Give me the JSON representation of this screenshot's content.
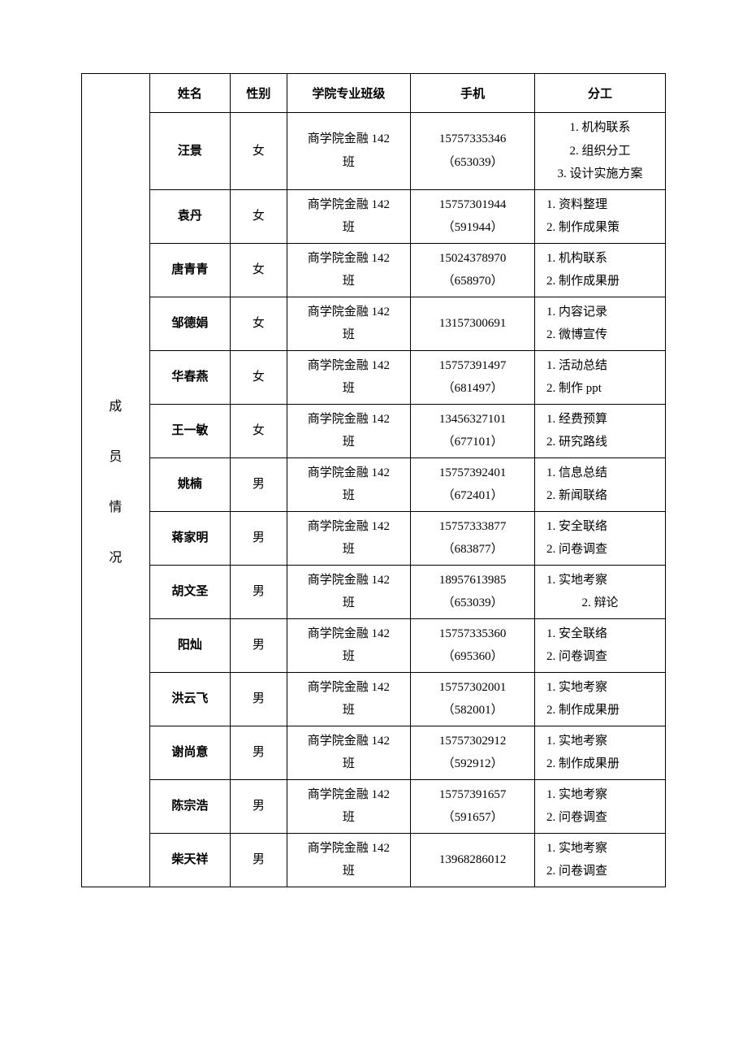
{
  "left_label": "成员情况",
  "headers": {
    "name": "姓名",
    "gender": "性别",
    "class": "学院专业班级",
    "phone": "手机",
    "work": "分工"
  },
  "rows": [
    {
      "name": "汪景",
      "gender": "女",
      "class": "商学院金融 142 班",
      "phone": "15757335346 （653039）",
      "work": [
        "1. 机构联系",
        "2. 组织分工",
        "3. 设计实施方案"
      ],
      "center": true
    },
    {
      "name": "袁丹",
      "gender": "女",
      "class": "商学院金融 142 班",
      "phone": "15757301944 （591944）",
      "work": [
        "1. 资料整理",
        "2. 制作成果策"
      ]
    },
    {
      "name": "唐青青",
      "gender": "女",
      "class": "商学院金融 142 班",
      "phone": "15024378970 （658970）",
      "work": [
        "1.  机构联系",
        "2.  制作成果册"
      ]
    },
    {
      "name": "邹德娟",
      "gender": "女",
      "class": "商学院金融 142 班",
      "phone": "13157300691",
      "work": [
        "1.  内容记录",
        "2.  微博宣传"
      ]
    },
    {
      "name": "华春燕",
      "gender": "女",
      "class": "商学院金融 142 班",
      "phone": "15757391497 （681497）",
      "work": [
        "1.  活动总结",
        "2.  制作 ppt"
      ]
    },
    {
      "name": "王一敏",
      "gender": "女",
      "class": "商学院金融 142 班",
      "phone": "13456327101 （677101）",
      "work": [
        "1.  经费预算",
        "2.  研究路线"
      ]
    },
    {
      "name": "姚楠",
      "gender": "男",
      "class": "商学院金融 142 班",
      "phone": "15757392401 （672401）",
      "work": [
        "1.  信息总结",
        "2.  新闻联络"
      ]
    },
    {
      "name": "蒋家明",
      "gender": "男",
      "class": "商学院金融 142 班",
      "phone": "15757333877 （683877）",
      "work": [
        "1.  安全联络",
        "2.  问卷调查"
      ]
    },
    {
      "name": "胡文圣",
      "gender": "男",
      "class": "商学院金融 142 班",
      "phone": "18957613985 （653039）",
      "work": [
        "1.  实地考察",
        "2.  辩论"
      ],
      "center_second": true
    },
    {
      "name": "阳灿",
      "gender": "男",
      "class": "商学院金融 142 班",
      "phone": "15757335360 （695360）",
      "work": [
        "1.  安全联络",
        "2.  问卷调查"
      ]
    },
    {
      "name": "洪云飞",
      "gender": "男",
      "class": "商学院金融 142 班",
      "phone": "15757302001 （582001）",
      "work": [
        "1.  实地考察",
        "2.  制作成果册"
      ]
    },
    {
      "name": "谢尚意",
      "gender": "男",
      "class": "商学院金融 142 班",
      "phone": "15757302912 （592912）",
      "work": [
        "1.  实地考察",
        "2.  制作成果册"
      ]
    },
    {
      "name": "陈宗浩",
      "gender": "男",
      "class": "商学院金融 142 班",
      "phone": "15757391657 （591657）",
      "work": [
        "1.  实地考察",
        "2.  问卷调查"
      ]
    },
    {
      "name": "柴天祥",
      "gender": "男",
      "class": "商学院金融 142 班",
      "phone": "13968286012",
      "work": [
        "1.  实地考察",
        "2.  问卷调查"
      ]
    }
  ]
}
